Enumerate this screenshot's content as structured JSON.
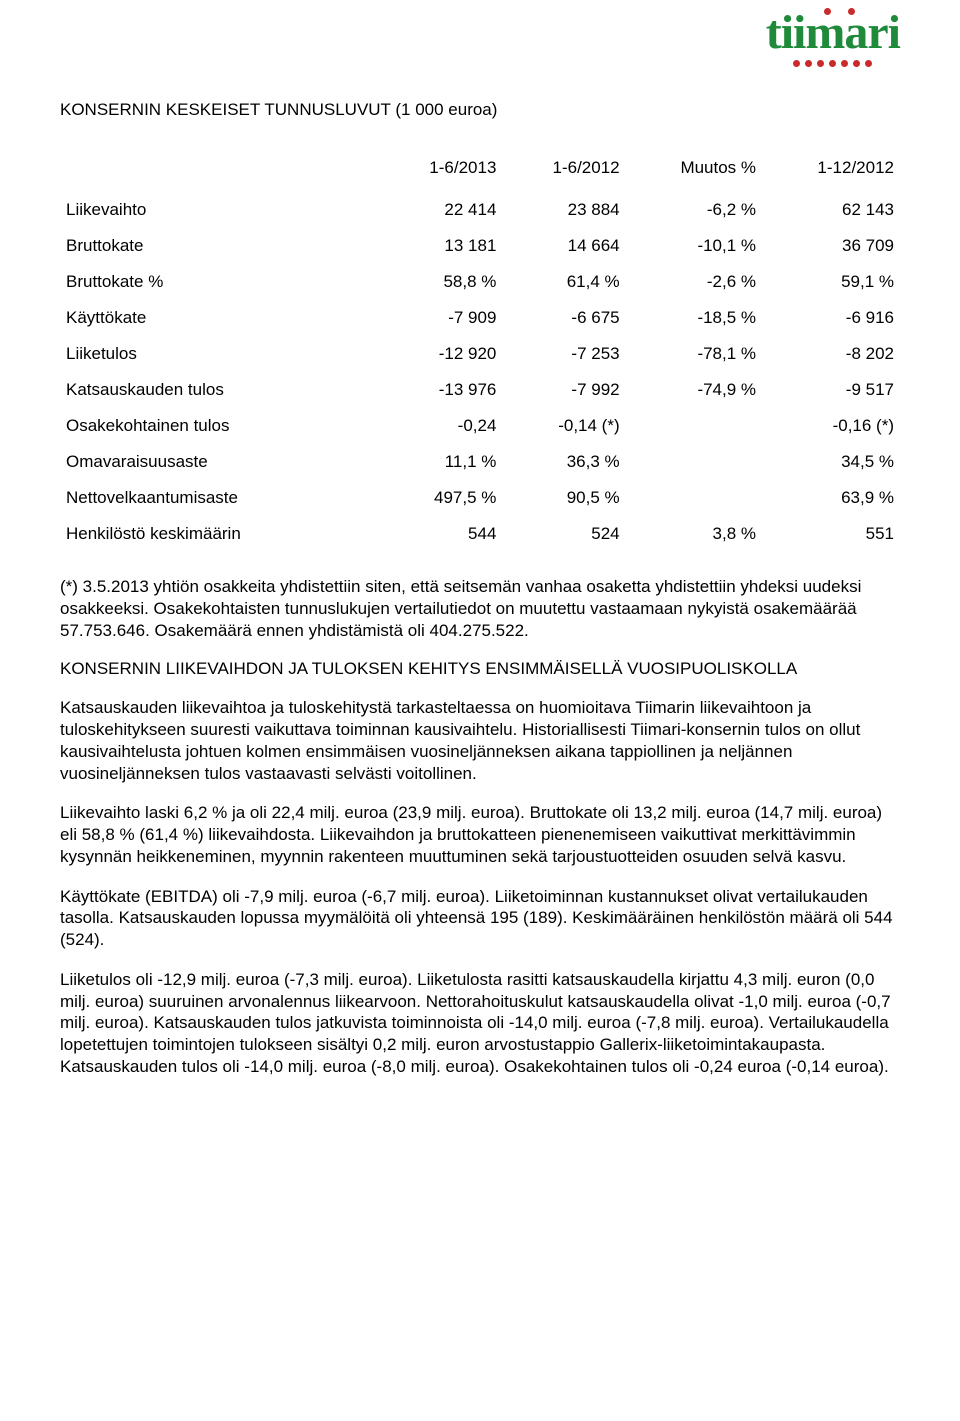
{
  "logo": {
    "text": "tiimari",
    "text_color": "#1f8a3a",
    "dot_color": "#c92a2a"
  },
  "heading": "KONSERNIN KESKEISET TUNNUSLUVUT (1 000 euroa)",
  "table": {
    "columns": [
      "",
      "1-6/2013",
      "1-6/2012",
      "Muutos %",
      "1-12/2012"
    ],
    "rows": [
      [
        "Liikevaihto",
        "22 414",
        "23 884",
        "-6,2 %",
        "62 143"
      ],
      [
        "Bruttokate",
        "13 181",
        "14 664",
        "-10,1 %",
        "36 709"
      ],
      [
        "Bruttokate %",
        "58,8 %",
        "61,4 %",
        "-2,6 %",
        "59,1 %"
      ],
      [
        "Käyttökate",
        "-7 909",
        "-6 675",
        "-18,5 %",
        "-6 916"
      ],
      [
        "Liiketulos",
        "-12 920",
        "-7 253",
        "-78,1 %",
        "-8 202"
      ],
      [
        "Katsauskauden tulos",
        "-13 976",
        "-7 992",
        "-74,9 %",
        "-9 517"
      ],
      [
        "Osakekohtainen tulos",
        "-0,24",
        "-0,14 (*)",
        "",
        "-0,16 (*)"
      ],
      [
        "Omavaraisuusaste",
        "11,1 %",
        "36,3 %",
        "",
        "34,5 %"
      ],
      [
        "Nettovelkaantumisaste",
        "497,5 %",
        "90,5 %",
        "",
        "63,9 %"
      ],
      [
        "Henkilöstö keskimäärin",
        "544",
        "524",
        "3,8 %",
        "551"
      ]
    ]
  },
  "footnote": "(*) 3.5.2013 yhtiön osakkeita yhdistettiin siten, että seitsemän vanhaa osaketta yhdistettiin yhdeksi uudeksi osakkeeksi. Osakekohtaisten tunnuslukujen vertailutiedot on muutettu vastaamaan nykyistä osakemäärää 57.753.646. Osakemäärä ennen yhdistämistä oli 404.275.522.",
  "subheading": "KONSERNIN LIIKEVAIHDON JA TULOKSEN KEHITYS ENSIMMÄISELLÄ VUOSIPUOLISKOLLA",
  "paragraphs": [
    "Katsauskauden liikevaihtoa ja tuloskehitystä tarkasteltaessa on huomioitava Tiimarin liikevaihtoon ja tuloskehitykseen suuresti vaikuttava toiminnan kausivaihtelu. Historiallisesti Tiimari-konsernin tulos on ollut kausivaihtelusta johtuen kolmen ensimmäisen vuosineljänneksen aikana tappiollinen ja neljännen vuosineljänneksen tulos vastaavasti selvästi voitollinen.",
    "Liikevaihto laski 6,2 % ja oli 22,4 milj. euroa (23,9 milj. euroa). Bruttokate oli 13,2 milj. euroa (14,7 milj. euroa) eli 58,8 % (61,4 %) liikevaihdosta. Liikevaihdon ja bruttokatteen pienenemiseen vaikuttivat merkittävimmin kysynnän heikkeneminen, myynnin rakenteen muuttuminen sekä tarjoustuotteiden osuuden selvä kasvu.",
    "Käyttökate (EBITDA) oli -7,9 milj. euroa (-6,7 milj. euroa). Liiketoiminnan kustannukset olivat vertailukauden tasolla. Katsauskauden lopussa myymälöitä oli yhteensä 195 (189). Keskimääräinen henkilöstön määrä oli 544 (524).",
    "Liiketulos oli -12,9 milj. euroa (-7,3 milj. euroa). Liiketulosta rasitti katsauskaudella kirjattu 4,3 milj. euron (0,0 milj. euroa) suuruinen arvonalennus liikearvoon. Nettorahoituskulut katsauskaudella olivat -1,0 milj. euroa (-0,7 milj. euroa). Katsauskauden tulos jatkuvista toiminnoista oli -14,0 milj. euroa (-7,8 milj. euroa). Vertailukaudella lopetettujen toimintojen tulokseen sisältyi 0,2 milj. euron arvostustappio Gallerix-liiketoimintakaupasta. Katsauskauden tulos oli -14,0 milj. euroa (-8,0 milj. euroa). Osakekohtainen tulos oli -0,24 euroa (-0,14 euroa)."
  ]
}
